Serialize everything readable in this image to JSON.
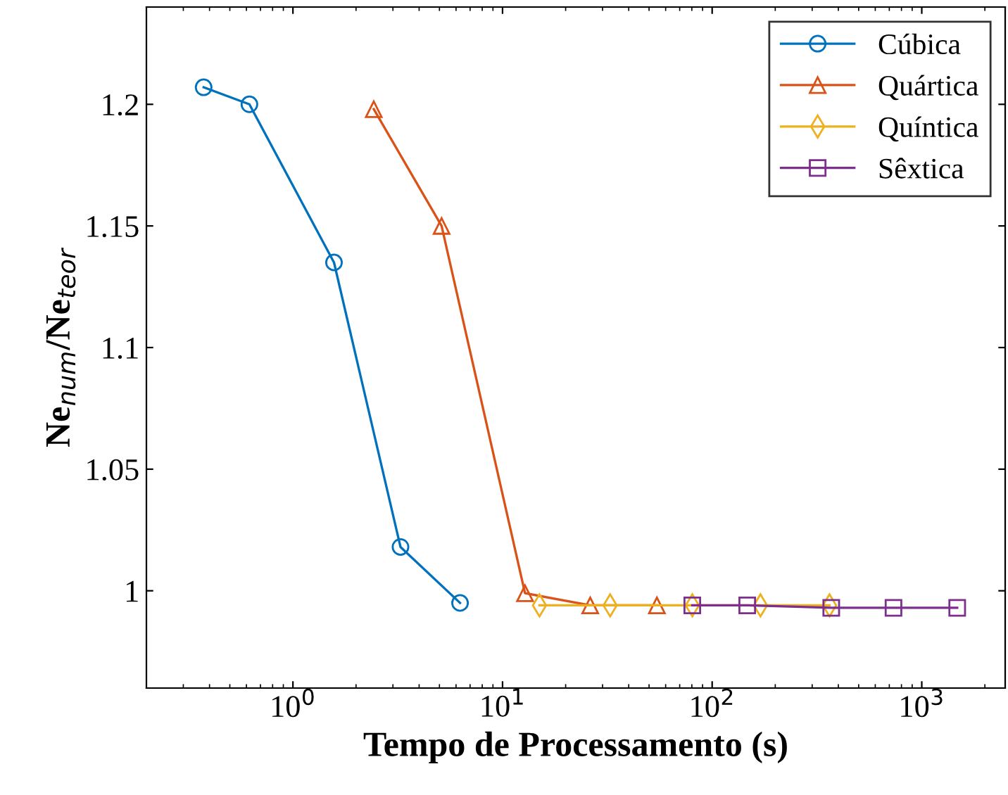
{
  "chart_data": {
    "type": "line",
    "xlabel": "Tempo de Processamento (s)",
    "ylabel": "Ne$_{num}$/Ne$_{teor}$",
    "log": "x",
    "legend": "top right",
    "grid": false,
    "xlim": [
      0.2,
      2500
    ],
    "xticks": [
      {
        "value": 1,
        "label": "10$^{0}$"
      },
      {
        "value": 10,
        "label": "10$^{1}$"
      },
      {
        "value": 100,
        "label": "10$^{2}$"
      },
      {
        "value": 1000,
        "label": "10$^{3}$"
      }
    ],
    "ylim": [
      0.96,
      1.24
    ],
    "yticks": [
      1,
      1.05,
      1.1,
      1.15,
      1.2
    ],
    "series": [
      {
        "name": "Cúbica",
        "color": "#0072bd",
        "marker": "circle",
        "x": [
          0.375,
          0.62,
          1.57,
          3.26,
          6.27
        ],
        "values": [
          1.207,
          1.2,
          1.135,
          1.018,
          0.995
        ]
      },
      {
        "name": "Quártica",
        "color": "#d95319",
        "marker": "triangle",
        "x": [
          2.43,
          5.12,
          12.8,
          26.2,
          54.5
        ],
        "values": [
          1.198,
          1.15,
          0.999,
          0.994,
          0.994
        ]
      },
      {
        "name": "Quíntica",
        "color": "#edb120",
        "marker": "diamond",
        "x": [
          15,
          32.6,
          80.4,
          170,
          363
        ],
        "values": [
          0.994,
          0.994,
          0.994,
          0.994,
          0.994
        ]
      },
      {
        "name": "Sêxtica",
        "color": "#7e2f8e",
        "marker": "square",
        "x": [
          80.4,
          147,
          370,
          733,
          1476
        ],
        "values": [
          0.994,
          0.994,
          0.993,
          0.993,
          0.993
        ]
      }
    ]
  }
}
